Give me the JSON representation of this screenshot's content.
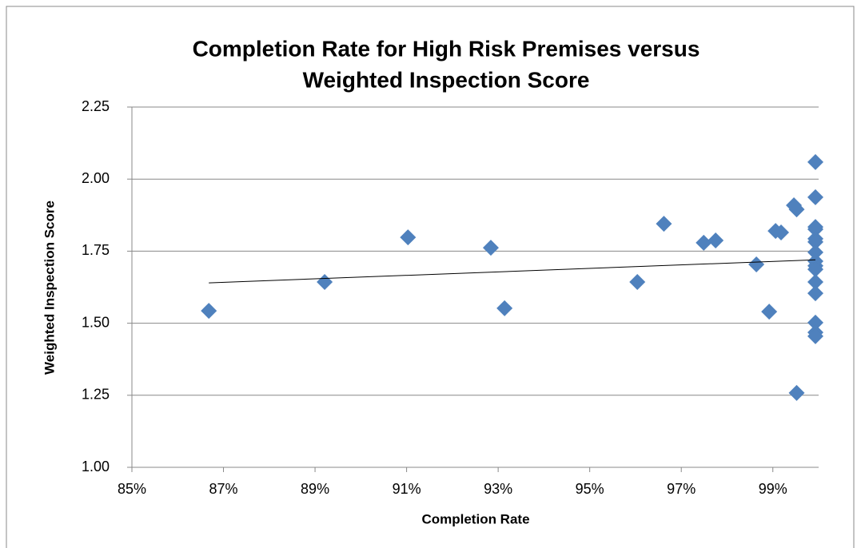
{
  "chart_data": {
    "type": "scatter",
    "title": [
      "Completion Rate for High Risk Premises versus",
      "Weighted Inspection Score"
    ],
    "x_label": "Completion Rate",
    "y_label": "Weighted Inspection Score",
    "xlim": [
      85,
      100
    ],
    "xticks": [
      {
        "value": 85,
        "label": "85%"
      },
      {
        "value": 87,
        "label": "87%"
      },
      {
        "value": 89,
        "label": "89%"
      },
      {
        "value": 91,
        "label": "91%"
      },
      {
        "value": 93,
        "label": "93%"
      },
      {
        "value": 95,
        "label": "95%"
      },
      {
        "value": 97,
        "label": "97%"
      },
      {
        "value": 99,
        "label": "99%"
      }
    ],
    "ylim": [
      1.0,
      2.25
    ],
    "yticks": [
      {
        "value": 1,
        "label": "1.00"
      },
      1.25,
      {
        "value": 1.5,
        "label": "1.50"
      },
      1.75,
      {
        "value": 2,
        "label": "2.00"
      },
      2.25
    ],
    "grid": true,
    "color": "#4f81bd",
    "x": [
      86.68,
      89.21,
      91.03,
      92.84,
      93.14,
      96.04,
      96.62,
      97.49,
      97.75,
      98.64,
      98.92,
      99.06,
      99.18,
      99.46,
      99.52,
      99.52,
      99.93,
      99.93,
      99.93,
      99.93,
      99.93,
      99.93,
      99.93,
      99.93,
      99.93,
      99.93,
      99.93,
      99.93,
      99.93,
      99.93,
      99.93
    ],
    "values": [
      1.543,
      1.643,
      1.798,
      1.762,
      1.552,
      1.643,
      1.845,
      1.779,
      1.787,
      1.704,
      1.54,
      1.82,
      1.815,
      1.909,
      1.895,
      1.258,
      2.059,
      1.937,
      1.834,
      1.826,
      1.793,
      1.782,
      1.746,
      1.715,
      1.699,
      1.687,
      1.643,
      1.604,
      1.502,
      1.468,
      1.455
    ],
    "trendline": {
      "x": [
        86.68,
        99.93
      ],
      "values": [
        1.64,
        1.72
      ]
    }
  }
}
